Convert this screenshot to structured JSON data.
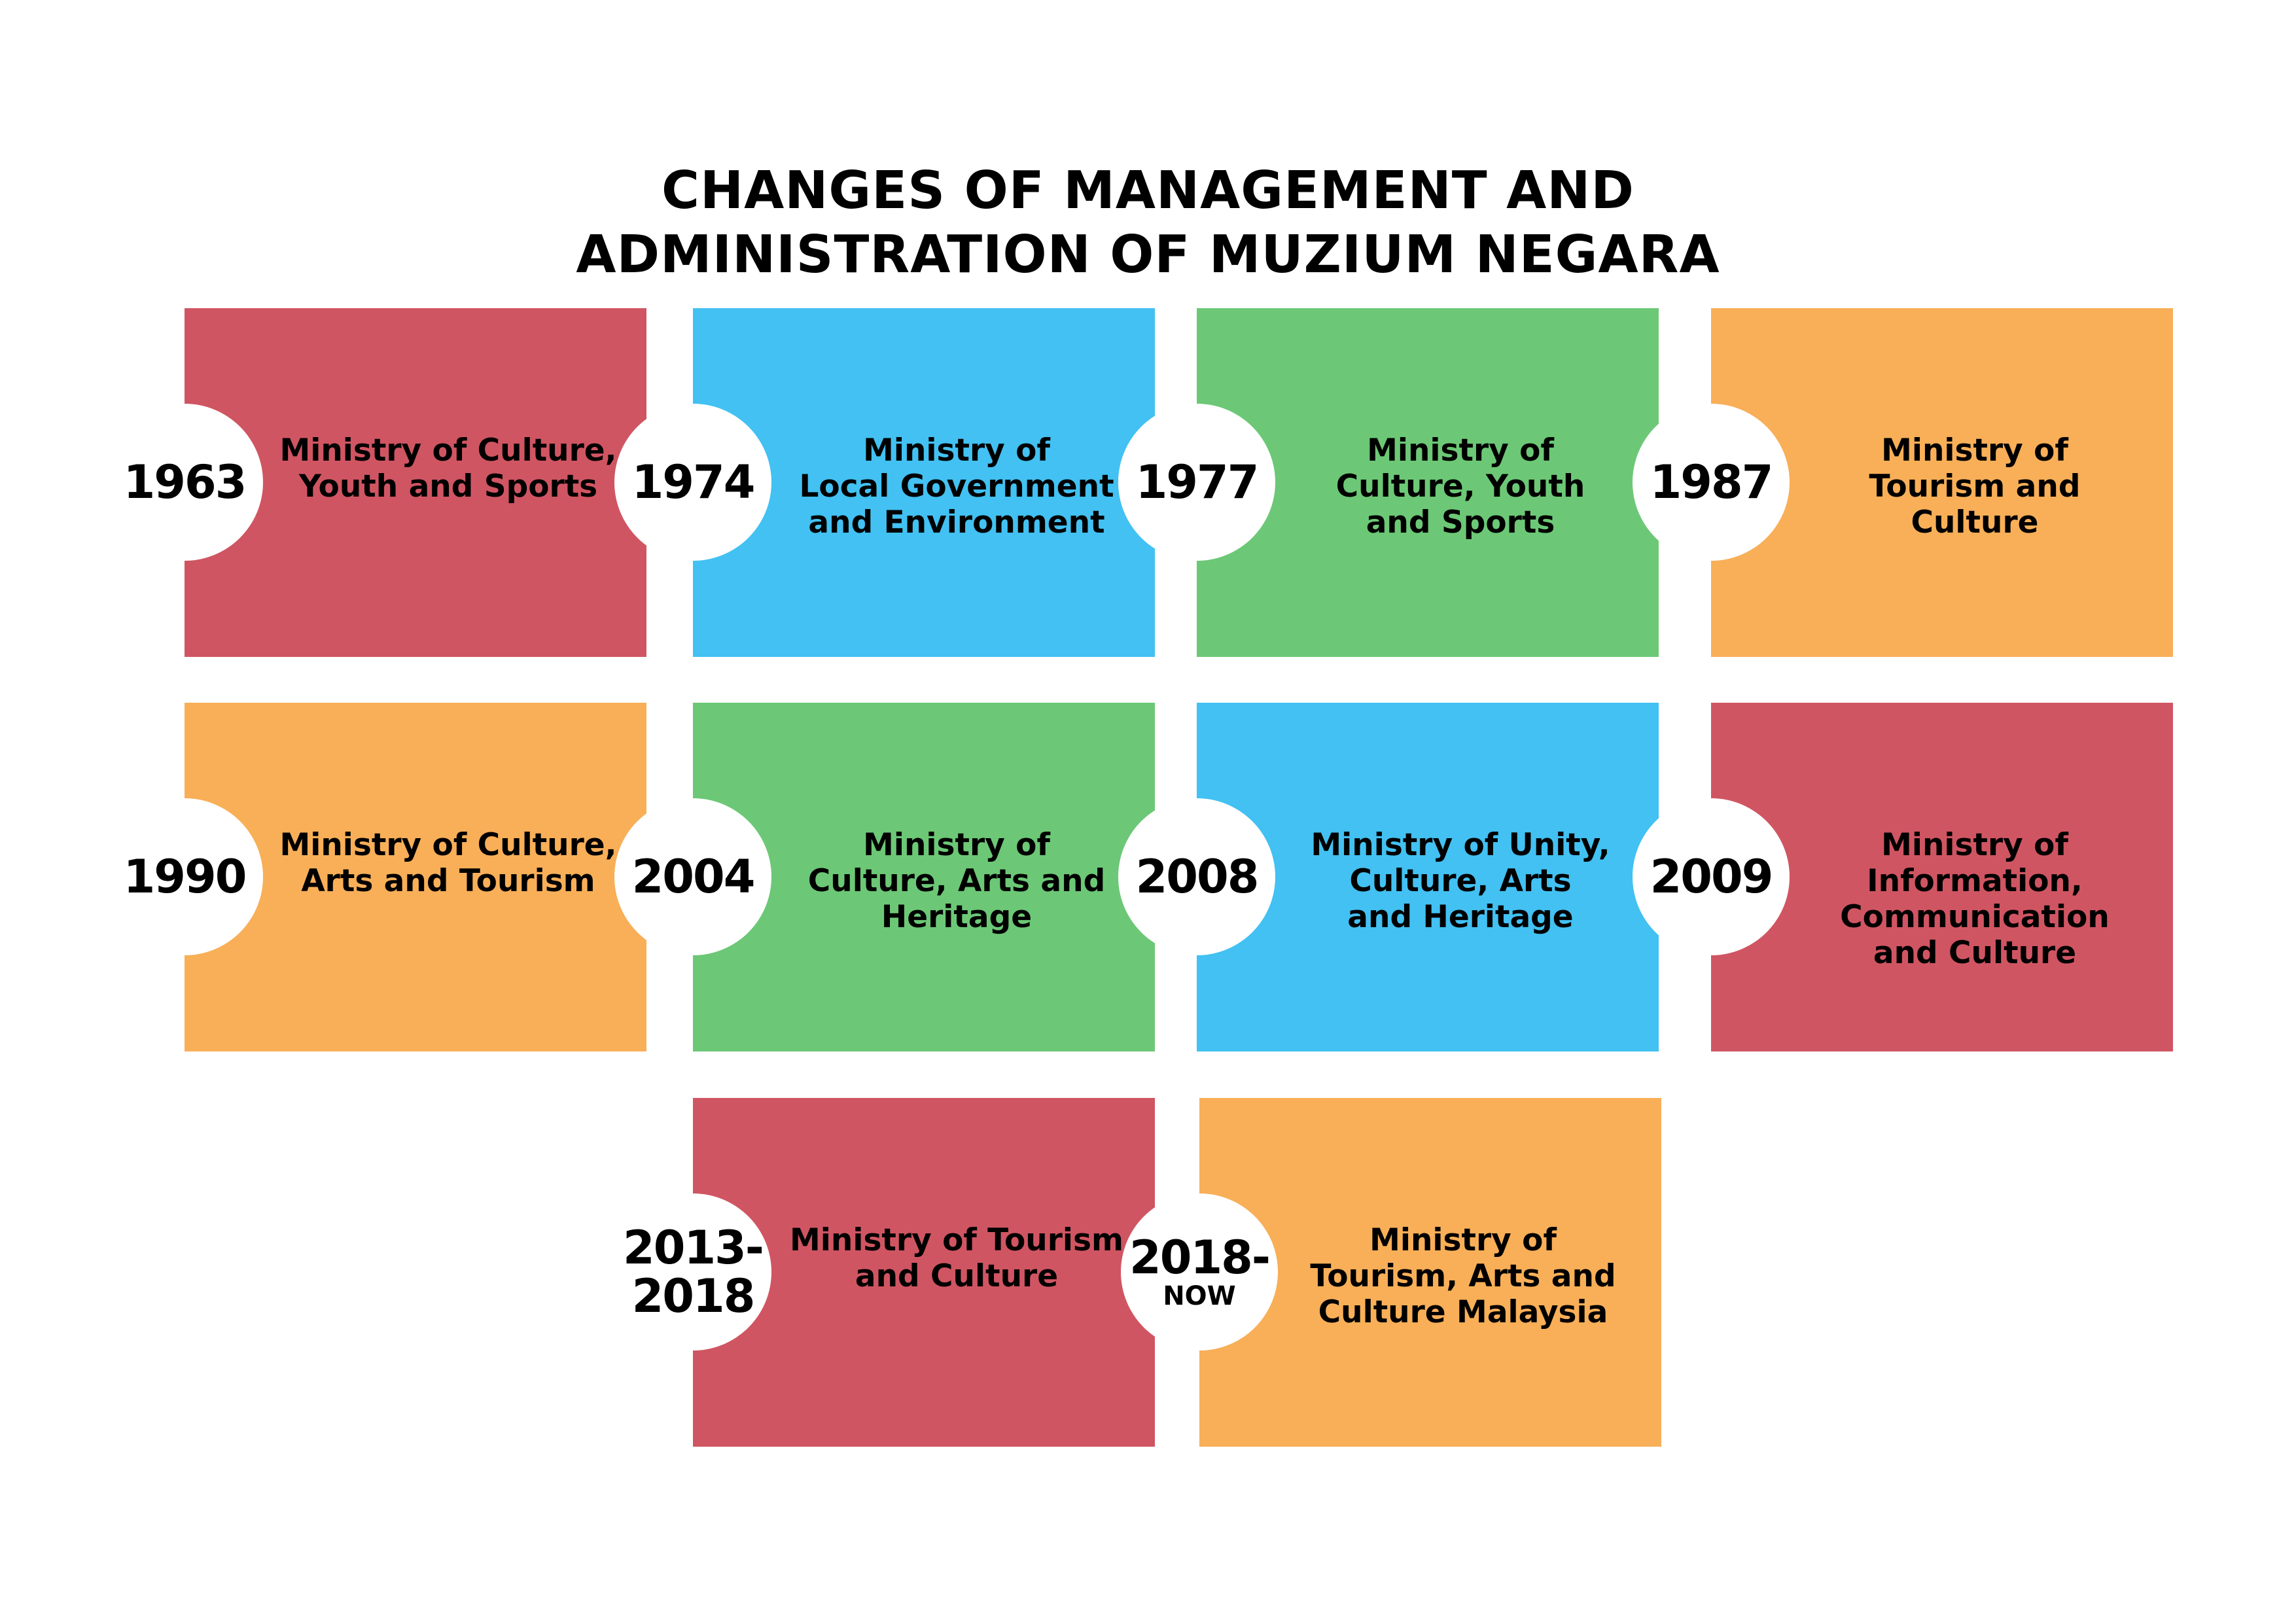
{
  "title": {
    "line1": "CHANGES OF MANAGEMENT AND",
    "line2": "ADMINISTRATION OF MUZIUM NEGARA"
  },
  "colors": {
    "red": "#D05562",
    "blue": "#42C1F2",
    "green": "#6CC876",
    "orange": "#F8AF58"
  },
  "items": [
    {
      "year": "1963",
      "color": "red",
      "lines": [
        "Ministry of Culture,",
        "Youth and Sports"
      ]
    },
    {
      "year": "1974",
      "color": "blue",
      "lines": [
        "Ministry of",
        "Local Government",
        "and Environment"
      ]
    },
    {
      "year": "1977",
      "color": "green",
      "lines": [
        "Ministry of",
        "Culture, Youth",
        "and Sports"
      ]
    },
    {
      "year": "1987",
      "color": "orange",
      "lines": [
        "Ministry of",
        "Tourism and",
        "Culture"
      ]
    },
    {
      "year": "1990",
      "color": "orange",
      "lines": [
        "Ministry of Culture,",
        "Arts and Tourism"
      ]
    },
    {
      "year": "2004",
      "color": "green",
      "lines": [
        "Ministry of",
        "Culture, Arts and",
        "Heritage"
      ]
    },
    {
      "year": "2008",
      "color": "blue",
      "lines": [
        "Ministry of Unity,",
        "Culture, Arts",
        "and Heritage"
      ]
    },
    {
      "year": "2009",
      "color": "red",
      "lines": [
        "Ministry of",
        "Information,",
        "Communication",
        "and Culture"
      ]
    },
    {
      "year": "2013-",
      "year2": "2018",
      "color": "red",
      "lines": [
        "Ministry of Tourism",
        "and Culture"
      ]
    },
    {
      "year": "2018-",
      "year2": "NOW",
      "color": "orange",
      "lines": [
        "Ministry of",
        "Tourism, Arts and",
        "Culture Malaysia"
      ]
    }
  ]
}
